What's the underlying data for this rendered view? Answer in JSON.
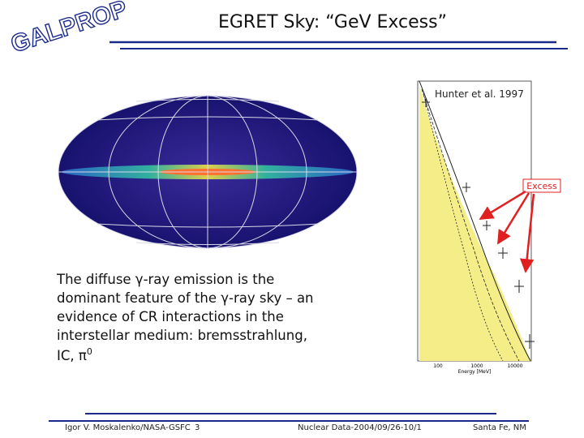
{
  "logo": "GALPROP",
  "title": "EGRET Sky: “GeV Excess”",
  "spectrum": {
    "citation": "Hunter et al. 1997",
    "annotation": "Excess",
    "x_ticks": [
      "100",
      "1000",
      "10000"
    ],
    "x_axis_label": "Energy [MeV]"
  },
  "body": {
    "lines": [
      "The diffuse γ-ray emission is the",
      "dominant feature of the γ-ray sky – an",
      "evidence of CR interactions in the",
      "interstellar medium: bremsstrahlung,"
    ],
    "last_line": "IC, π",
    "superscript": "0"
  },
  "footer": {
    "author": "Igor V. Moskalenko/NASA-GSFC",
    "page": "3",
    "event": "Nuclear Data-2004/09/26-10/1",
    "location": "Santa Fe, NM"
  }
}
